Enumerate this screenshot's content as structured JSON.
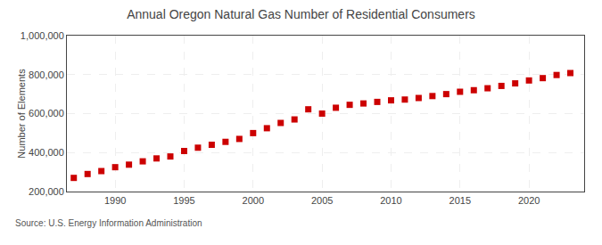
{
  "chart_data": {
    "type": "scatter",
    "title": "Annual Oregon Natural Gas Number of Residential Consumers",
    "ylabel": "Number of Elements",
    "annotations": [
      "Source: U.S. Energy Information Administration"
    ],
    "x": [
      1987,
      1988,
      1989,
      1990,
      1991,
      1992,
      1993,
      1994,
      1995,
      1996,
      1997,
      1998,
      1999,
      2000,
      2001,
      2002,
      2003,
      2004,
      2005,
      2006,
      2007,
      2008,
      2009,
      2010,
      2011,
      2012,
      2013,
      2014,
      2015,
      2016,
      2017,
      2018,
      2019,
      2020,
      2021,
      2022,
      2023
    ],
    "values": [
      270000,
      290000,
      305000,
      325000,
      338000,
      355000,
      370000,
      380000,
      408000,
      425000,
      440000,
      455000,
      470000,
      500000,
      525000,
      552000,
      570000,
      622000,
      600000,
      630000,
      645000,
      652000,
      660000,
      668000,
      672000,
      680000,
      690000,
      700000,
      712000,
      720000,
      730000,
      742000,
      755000,
      770000,
      782000,
      798000,
      808000
    ],
    "color": "#cc0000",
    "marker": "square",
    "xlim": [
      1986.5,
      2024
    ],
    "xticks": [
      1990,
      1995,
      2000,
      2005,
      2010,
      2015,
      2020
    ],
    "ylim": [
      200000,
      1000000
    ],
    "yticks": [
      {
        "value": 200000,
        "label": "200,000"
      },
      {
        "value": 400000,
        "label": "400,000"
      },
      {
        "value": 600000,
        "label": "600,000"
      },
      {
        "value": 800000,
        "label": "800,000"
      },
      {
        "value": 1000000,
        "label": "1,000,000"
      }
    ],
    "grid": true
  }
}
